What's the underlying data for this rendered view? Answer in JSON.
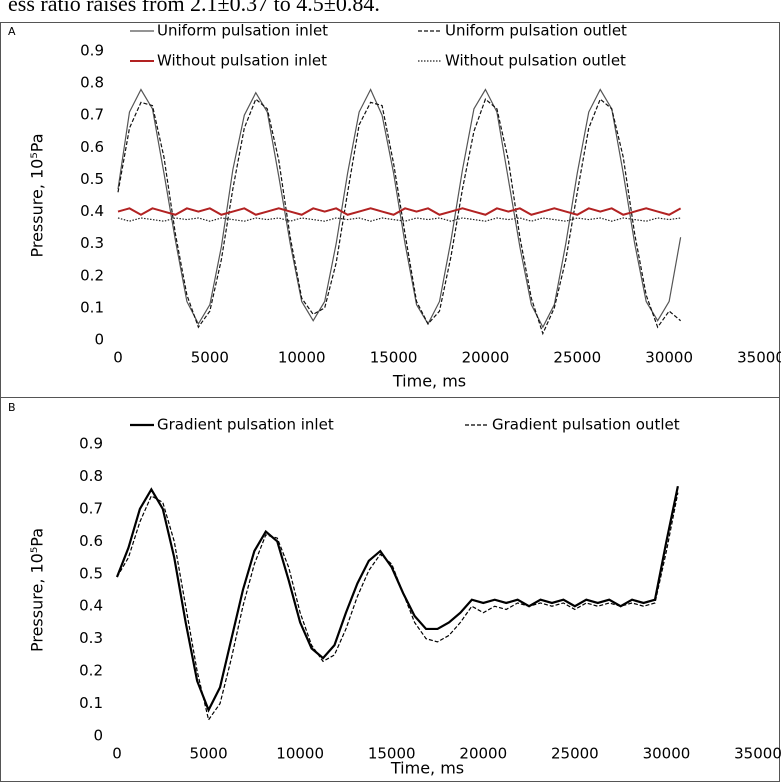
{
  "header_text": "ess ratio raises from 2.1±0.37 to 4.5±0.84.",
  "chart_data": [
    {
      "type": "line",
      "panel_label": "A",
      "xlabel": "Time, ms",
      "ylabel": "Pressure, 10⁵Pa",
      "legend": "top",
      "xlim": [
        0,
        35000
      ],
      "ylim": [
        0,
        0.9
      ],
      "xticks": [
        0,
        5000,
        10000,
        15000,
        20000,
        25000,
        30000,
        35000
      ],
      "yticks": [
        0,
        0.1,
        0.2,
        0.3,
        0.4,
        0.5,
        0.6,
        0.7,
        0.8,
        0.9
      ],
      "x": [
        0,
        625,
        1250,
        1875,
        2500,
        3125,
        3750,
        4375,
        5000,
        5625,
        6250,
        6875,
        7500,
        8125,
        8750,
        9375,
        10000,
        10625,
        11250,
        11875,
        12500,
        13125,
        13750,
        14375,
        15000,
        15625,
        16250,
        16875,
        17500,
        18125,
        18750,
        19375,
        20000,
        20625,
        21250,
        21875,
        22500,
        23125,
        23750,
        24375,
        25000,
        25625,
        26250,
        26875,
        27500,
        28125,
        28750,
        29375,
        30000,
        30625
      ],
      "series": [
        {
          "name": "Uniform pulsation inlet",
          "color": "#555555",
          "style": "solid",
          "values": [
            0.47,
            0.71,
            0.78,
            0.72,
            0.52,
            0.31,
            0.12,
            0.05,
            0.11,
            0.29,
            0.53,
            0.7,
            0.77,
            0.71,
            0.51,
            0.3,
            0.12,
            0.06,
            0.12,
            0.3,
            0.52,
            0.71,
            0.78,
            0.7,
            0.52,
            0.3,
            0.11,
            0.05,
            0.12,
            0.31,
            0.53,
            0.72,
            0.78,
            0.71,
            0.5,
            0.29,
            0.11,
            0.04,
            0.11,
            0.3,
            0.52,
            0.71,
            0.78,
            0.72,
            0.52,
            0.3,
            0.12,
            0.06,
            0.12,
            0.32
          ]
        },
        {
          "name": "Uniform pulsation outlet",
          "color": "#111111",
          "style": "dashed",
          "values": [
            0.46,
            0.66,
            0.74,
            0.73,
            0.57,
            0.33,
            0.14,
            0.04,
            0.09,
            0.25,
            0.47,
            0.66,
            0.75,
            0.72,
            0.56,
            0.32,
            0.13,
            0.08,
            0.1,
            0.24,
            0.46,
            0.67,
            0.74,
            0.73,
            0.55,
            0.33,
            0.12,
            0.05,
            0.09,
            0.26,
            0.47,
            0.65,
            0.75,
            0.72,
            0.56,
            0.32,
            0.13,
            0.02,
            0.1,
            0.25,
            0.46,
            0.66,
            0.75,
            0.72,
            0.57,
            0.33,
            0.14,
            0.04,
            0.09,
            0.06
          ]
        },
        {
          "name": "Without pulsation inlet",
          "color": "#b22222",
          "style": "solid",
          "values": [
            0.4,
            0.41,
            0.39,
            0.41,
            0.4,
            0.39,
            0.41,
            0.4,
            0.41,
            0.39,
            0.4,
            0.41,
            0.39,
            0.4,
            0.41,
            0.4,
            0.39,
            0.41,
            0.4,
            0.41,
            0.39,
            0.4,
            0.41,
            0.4,
            0.39,
            0.41,
            0.4,
            0.41,
            0.39,
            0.4,
            0.41,
            0.4,
            0.39,
            0.41,
            0.4,
            0.41,
            0.39,
            0.4,
            0.41,
            0.4,
            0.39,
            0.41,
            0.4,
            0.41,
            0.39,
            0.4,
            0.41,
            0.4,
            0.39,
            0.41
          ]
        },
        {
          "name": "Without pulsation outlet",
          "color": "#222222",
          "style": "dotted",
          "values": [
            0.38,
            0.37,
            0.38,
            0.375,
            0.37,
            0.38,
            0.375,
            0.38,
            0.37,
            0.38,
            0.375,
            0.37,
            0.38,
            0.375,
            0.38,
            0.37,
            0.38,
            0.375,
            0.37,
            0.38,
            0.375,
            0.38,
            0.37,
            0.38,
            0.375,
            0.37,
            0.38,
            0.375,
            0.38,
            0.37,
            0.38,
            0.375,
            0.37,
            0.38,
            0.375,
            0.38,
            0.37,
            0.38,
            0.375,
            0.37,
            0.38,
            0.375,
            0.38,
            0.37,
            0.38,
            0.375,
            0.37,
            0.38,
            0.375,
            0.38
          ]
        }
      ]
    },
    {
      "type": "line",
      "panel_label": "B",
      "xlabel": "Time, ms",
      "ylabel": "Pressure, 10⁵Pa",
      "legend": "top",
      "xlim": [
        0,
        35000
      ],
      "ylim": [
        0,
        0.9
      ],
      "xticks": [
        0,
        5000,
        10000,
        15000,
        20000,
        25000,
        30000,
        35000
      ],
      "yticks": [
        0,
        0.1,
        0.2,
        0.3,
        0.4,
        0.5,
        0.6,
        0.7,
        0.8,
        0.9
      ],
      "x": [
        0,
        625,
        1250,
        1875,
        2500,
        3125,
        3750,
        4375,
        5000,
        5625,
        6250,
        6875,
        7500,
        8125,
        8750,
        9375,
        10000,
        10625,
        11250,
        11875,
        12500,
        13125,
        13750,
        14375,
        15000,
        15625,
        16250,
        16875,
        17500,
        18125,
        18750,
        19375,
        20000,
        20625,
        21250,
        21875,
        22500,
        23125,
        23750,
        24375,
        25000,
        25625,
        26250,
        26875,
        27500,
        28125,
        28750,
        29375,
        30000,
        30625
      ],
      "series": [
        {
          "name": "Gradient pulsation inlet",
          "color": "#000000",
          "style": "solid",
          "values": [
            0.49,
            0.58,
            0.7,
            0.76,
            0.7,
            0.55,
            0.35,
            0.17,
            0.08,
            0.15,
            0.3,
            0.45,
            0.57,
            0.63,
            0.6,
            0.48,
            0.35,
            0.27,
            0.24,
            0.28,
            0.38,
            0.47,
            0.54,
            0.57,
            0.52,
            0.44,
            0.37,
            0.33,
            0.33,
            0.35,
            0.38,
            0.42,
            0.41,
            0.42,
            0.41,
            0.42,
            0.4,
            0.42,
            0.41,
            0.42,
            0.4,
            0.42,
            0.41,
            0.42,
            0.4,
            0.42,
            0.41,
            0.42,
            0.6,
            0.77
          ]
        },
        {
          "name": "Gradient pulsation outlet",
          "color": "#000000",
          "style": "dashed",
          "values": [
            0.49,
            0.55,
            0.66,
            0.74,
            0.72,
            0.6,
            0.4,
            0.2,
            0.05,
            0.1,
            0.24,
            0.4,
            0.53,
            0.62,
            0.61,
            0.52,
            0.38,
            0.28,
            0.23,
            0.25,
            0.33,
            0.43,
            0.51,
            0.56,
            0.53,
            0.44,
            0.35,
            0.3,
            0.29,
            0.31,
            0.35,
            0.4,
            0.38,
            0.4,
            0.39,
            0.41,
            0.4,
            0.41,
            0.4,
            0.41,
            0.39,
            0.41,
            0.4,
            0.41,
            0.4,
            0.41,
            0.4,
            0.41,
            0.57,
            0.75
          ]
        }
      ]
    }
  ]
}
